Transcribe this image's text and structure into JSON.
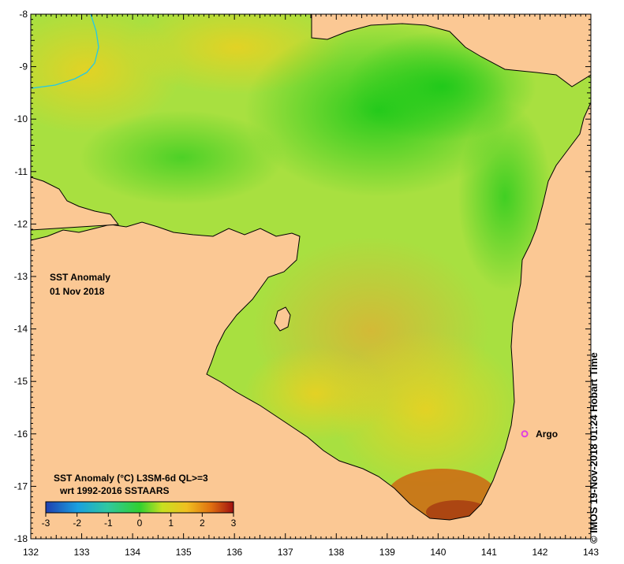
{
  "map": {
    "title": "SST Anomaly",
    "date": "01 Nov 2018",
    "credit": "© IMOS 19-Nov-2018 01:24 Hobart Time",
    "lon_ticks": [
      "132",
      "133",
      "134",
      "135",
      "136",
      "137",
      "138",
      "139",
      "140",
      "141",
      "142",
      "143"
    ],
    "lat_ticks": [
      "-8",
      "-9",
      "-10",
      "-11",
      "-12",
      "-13",
      "-14",
      "-15",
      "-16",
      "-17",
      "-18"
    ],
    "lon_range": [
      132,
      143
    ],
    "lat_range": [
      -18,
      -8
    ],
    "argo": {
      "label": "Argo",
      "lon": 141.7,
      "lat": -16.0,
      "color": "#e040e0"
    },
    "colors": {
      "land": "#fbc894",
      "ocean_mid": "#9ee03a",
      "river": "#22c8e8"
    }
  },
  "colorbar": {
    "title": "SST Anomaly (°C) L3SM-6d QL>=3",
    "subtitle": "wrt 1992-2016 SSTAARS",
    "ticks": [
      "-3",
      "-2",
      "-1",
      "0",
      "1",
      "2",
      "3"
    ],
    "range": [
      -3,
      3
    ],
    "colors": [
      "#2040b0",
      "#1aa0e0",
      "#30c8a0",
      "#30d030",
      "#c8e020",
      "#f0c020",
      "#e07010",
      "#a01010"
    ]
  }
}
